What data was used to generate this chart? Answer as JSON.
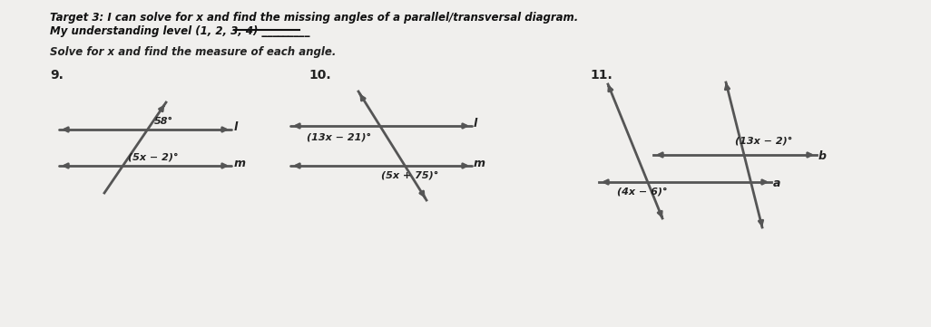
{
  "bg_color": "#f0efed",
  "title_line1": "Target 3: I can solve for x and find the missing angles of a parallel/transversal diagram.",
  "title_line2": "My understanding level (1, 2, 3, 4) _________",
  "subtitle": "Solve for x and find the measure of each angle.",
  "prob_labels": [
    "9.",
    "10.",
    "11."
  ],
  "prob9": {
    "angle_top": "58°",
    "angle_bottom": "(5x − 2)°",
    "line_top_label": "l",
    "line_bottom_label": "m"
  },
  "prob10": {
    "angle_top": "(13x − 21)°",
    "angle_bottom": "(5x + 75)°",
    "line_top_label": "l",
    "line_bottom_label": "m"
  },
  "prob11": {
    "angle_top": "(13x − 2)°",
    "angle_bottom": "(4x − 6)°",
    "line_a_label": "a",
    "line_b_label": "b"
  },
  "line_color": "#555555",
  "text_color": "#222222",
  "title_color": "#111111"
}
